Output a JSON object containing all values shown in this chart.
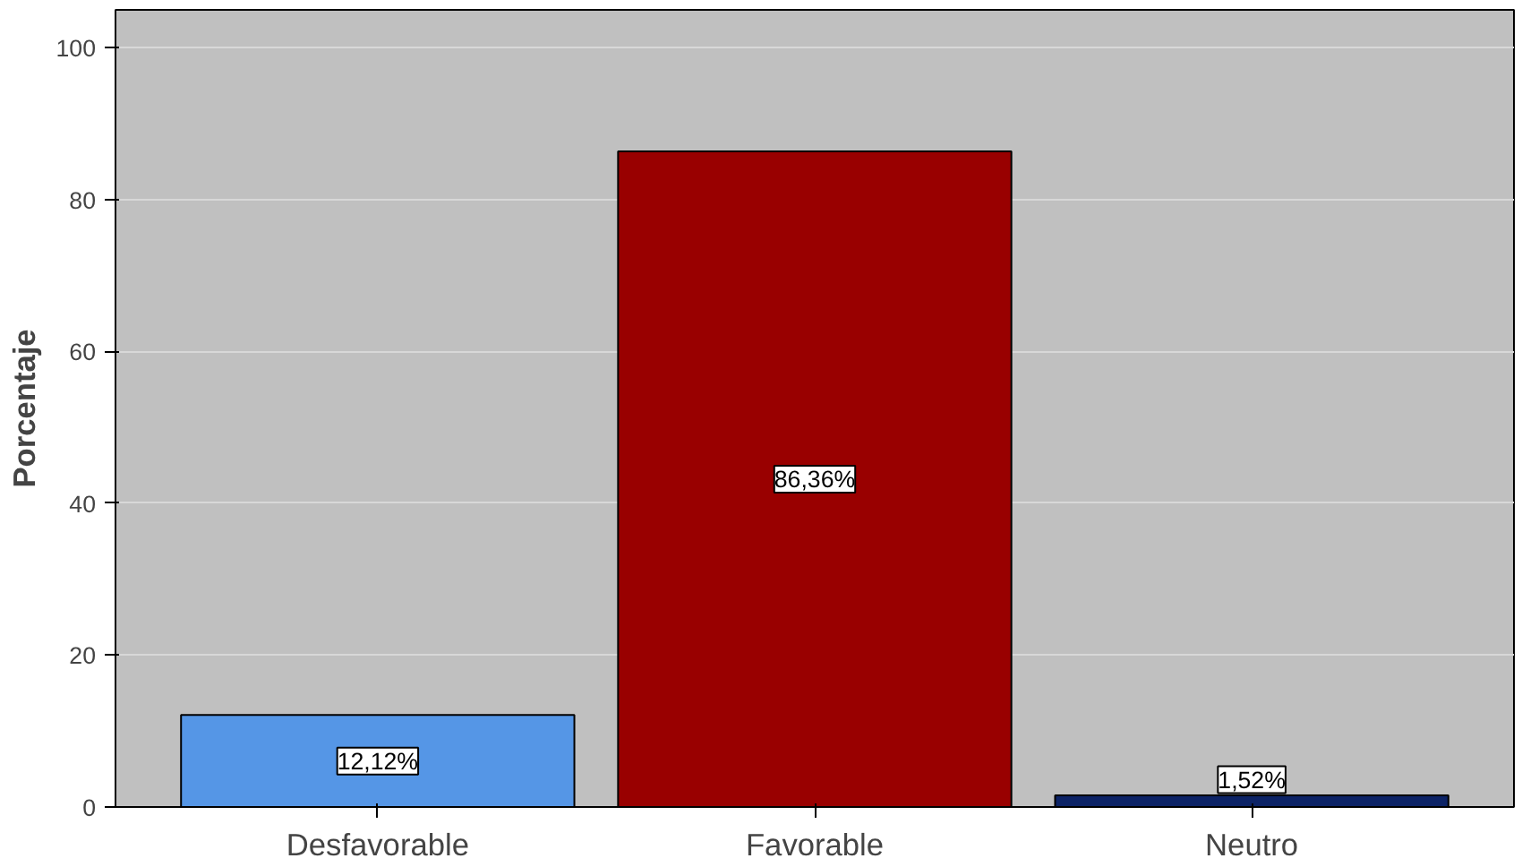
{
  "chart_data": {
    "type": "bar",
    "ylabel": "Porcentaje",
    "categories": [
      "Desfavorable",
      "Favorable",
      "Neutro"
    ],
    "values": [
      12.12,
      86.36,
      1.52
    ],
    "colors": [
      "#5596e6",
      "#990000",
      "#0c2366"
    ],
    "value_labels": [
      "12,12%",
      "86,36%",
      "1,52%"
    ],
    "ylim": [
      0,
      105
    ],
    "yticks": [
      0,
      20,
      40,
      60,
      80,
      100
    ],
    "grid": "y"
  }
}
